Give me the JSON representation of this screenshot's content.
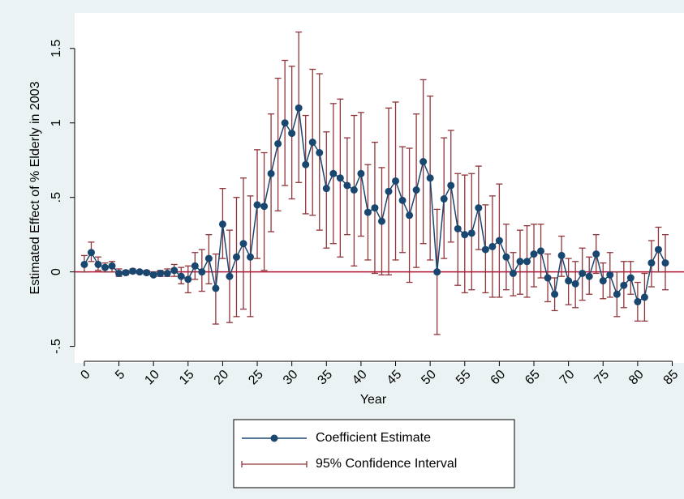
{
  "chart_data": {
    "type": "errorline",
    "x_label": "Year",
    "y_label": "Estimated Effect of % Elderly in 2003",
    "x": [
      0,
      1,
      2,
      3,
      4,
      5,
      6,
      7,
      8,
      9,
      10,
      11,
      12,
      13,
      14,
      15,
      16,
      17,
      18,
      19,
      20,
      21,
      22,
      23,
      24,
      25,
      26,
      27,
      28,
      29,
      30,
      31,
      32,
      33,
      34,
      35,
      36,
      37,
      38,
      39,
      40,
      41,
      42,
      43,
      44,
      45,
      46,
      47,
      48,
      49,
      50,
      51,
      52,
      53,
      54,
      55,
      56,
      57,
      58,
      59,
      60,
      61,
      62,
      63,
      64,
      65,
      66,
      67,
      68,
      69,
      70,
      71,
      72,
      73,
      74,
      75,
      76,
      77,
      78,
      79,
      80,
      81,
      82,
      83,
      84
    ],
    "series": [
      {
        "name": "Coefficient Estimate",
        "color": "#1a476f",
        "values": [
          0.05,
          0.13,
          0.05,
          0.03,
          0.04,
          -0.01,
          -0.005,
          0.005,
          0.0,
          -0.005,
          -0.02,
          -0.01,
          -0.01,
          0.01,
          -0.03,
          -0.05,
          0.04,
          0.0,
          0.09,
          -0.11,
          0.32,
          -0.03,
          0.1,
          0.19,
          0.1,
          0.45,
          0.44,
          0.66,
          0.86,
          1.0,
          0.93,
          1.1,
          0.72,
          0.87,
          0.8,
          0.56,
          0.66,
          0.63,
          0.58,
          0.55,
          0.66,
          0.4,
          0.43,
          0.34,
          0.54,
          0.61,
          0.48,
          0.38,
          0.55,
          0.74,
          0.63,
          0.0,
          0.49,
          0.58,
          0.29,
          0.25,
          0.26,
          0.43,
          0.15,
          0.17,
          0.21,
          0.1,
          -0.01,
          0.07,
          0.07,
          0.12,
          0.14,
          -0.04,
          -0.15,
          0.11,
          -0.06,
          -0.08,
          -0.01,
          -0.03,
          0.12,
          -0.06,
          -0.02,
          -0.15,
          -0.09,
          -0.04,
          -0.2,
          -0.17,
          0.06,
          0.15,
          0.06
        ]
      },
      {
        "name": "95% Confidence Interval",
        "color": "#90353b",
        "lower": [
          0.0,
          0.07,
          0.01,
          0.0,
          0.0,
          -0.03,
          -0.02,
          -0.01,
          -0.01,
          -0.02,
          -0.03,
          -0.03,
          -0.03,
          -0.03,
          -0.08,
          -0.14,
          -0.05,
          -0.13,
          -0.08,
          -0.35,
          0.09,
          -0.34,
          -0.3,
          -0.25,
          -0.3,
          0.09,
          0.01,
          0.27,
          0.41,
          0.58,
          0.49,
          0.6,
          0.39,
          0.38,
          0.28,
          0.16,
          0.19,
          0.1,
          0.25,
          0.04,
          0.24,
          0.08,
          -0.01,
          -0.02,
          -0.02,
          0.08,
          0.13,
          -0.07,
          0.03,
          0.19,
          0.08,
          -0.42,
          0.09,
          0.2,
          -0.09,
          -0.14,
          -0.12,
          0.15,
          -0.14,
          -0.17,
          -0.17,
          -0.12,
          -0.16,
          -0.15,
          -0.17,
          -0.1,
          -0.04,
          -0.2,
          -0.26,
          -0.03,
          -0.22,
          -0.24,
          -0.19,
          -0.15,
          -0.01,
          -0.18,
          -0.17,
          -0.3,
          -0.24,
          -0.15,
          -0.33,
          -0.33,
          -0.1,
          0.0,
          -0.12
        ],
        "upper": [
          0.11,
          0.2,
          0.1,
          0.06,
          0.07,
          0.02,
          0.01,
          0.02,
          0.01,
          0.01,
          0.0,
          0.01,
          0.02,
          0.05,
          0.03,
          0.04,
          0.13,
          0.15,
          0.25,
          0.12,
          0.56,
          0.28,
          0.5,
          0.63,
          0.51,
          0.82,
          0.8,
          1.06,
          1.3,
          1.42,
          1.38,
          1.61,
          1.05,
          1.36,
          1.33,
          0.94,
          1.13,
          1.16,
          0.9,
          1.05,
          1.07,
          0.72,
          0.87,
          0.7,
          1.1,
          1.14,
          0.84,
          0.83,
          1.06,
          1.29,
          1.18,
          0.42,
          0.9,
          0.95,
          0.66,
          0.65,
          0.66,
          0.71,
          0.45,
          0.51,
          0.59,
          0.32,
          0.13,
          0.28,
          0.31,
          0.32,
          0.32,
          0.12,
          -0.04,
          0.24,
          0.09,
          0.07,
          0.16,
          0.1,
          0.25,
          0.06,
          0.13,
          0.0,
          0.07,
          0.07,
          -0.07,
          -0.01,
          0.21,
          0.3,
          0.25
        ]
      }
    ],
    "reference_line": 0,
    "reference_color": "#b01030",
    "xlim": [
      -1.4,
      86.7
    ],
    "ylim": [
      -0.6,
      1.7
    ],
    "xticks": [
      0,
      5,
      10,
      15,
      20,
      25,
      30,
      35,
      40,
      45,
      50,
      55,
      60,
      65,
      70,
      75,
      80,
      85
    ],
    "yticks": [
      {
        "value": -0.5,
        "label": "-.5"
      },
      0,
      {
        "value": 0.5,
        "label": ".5"
      },
      1,
      1.5
    ]
  }
}
